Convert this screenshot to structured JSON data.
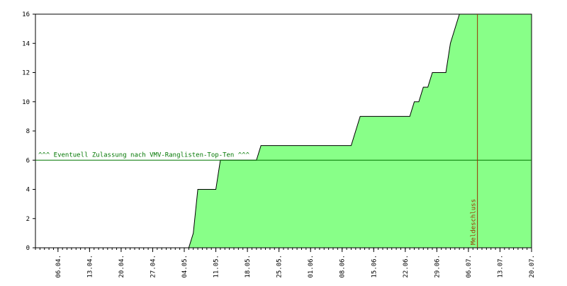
{
  "chart_data": {
    "type": "area",
    "x": [
      0,
      34,
      35,
      36,
      40,
      41,
      49,
      50,
      70,
      72,
      83,
      84,
      85,
      86,
      87,
      88,
      91,
      92,
      93,
      94,
      110
    ],
    "series": [
      {
        "color": "#88ff88",
        "line_color": "#000000",
        "values": [
          0,
          0,
          1,
          4,
          4,
          6,
          6,
          7,
          7,
          9,
          9,
          10,
          10,
          11,
          11,
          12,
          12,
          14,
          15,
          16,
          16
        ]
      }
    ],
    "xlim": [
      0,
      110
    ],
    "xticks": [
      {
        "value": 5,
        "label": "06.04."
      },
      {
        "value": 12,
        "label": "13.04."
      },
      {
        "value": 19,
        "label": "20.04."
      },
      {
        "value": 26,
        "label": "27.04."
      },
      {
        "value": 33,
        "label": "04.05."
      },
      {
        "value": 40,
        "label": "11.05."
      },
      {
        "value": 47,
        "label": "18.05."
      },
      {
        "value": 54,
        "label": "25.05."
      },
      {
        "value": 61,
        "label": "01.06."
      },
      {
        "value": 68,
        "label": "08.06."
      },
      {
        "value": 75,
        "label": "15.06."
      },
      {
        "value": 82,
        "label": "22.06."
      },
      {
        "value": 89,
        "label": "29.06."
      },
      {
        "value": 96,
        "label": "06.07."
      },
      {
        "value": 103,
        "label": "13.07."
      },
      {
        "value": 110,
        "label": "20.07."
      }
    ],
    "ylim": [
      0,
      16
    ],
    "yticks": [
      0,
      2,
      4,
      6,
      8,
      10,
      12,
      14,
      16
    ],
    "hline": {
      "value": 6,
      "label": "^^^ Eventuell Zulassung nach VMV-Ranglisten-Top-Ten ^^^",
      "color": "#007700"
    },
    "vline": {
      "value": 98,
      "label": "Meldeschluss",
      "color": "#993300"
    }
  }
}
